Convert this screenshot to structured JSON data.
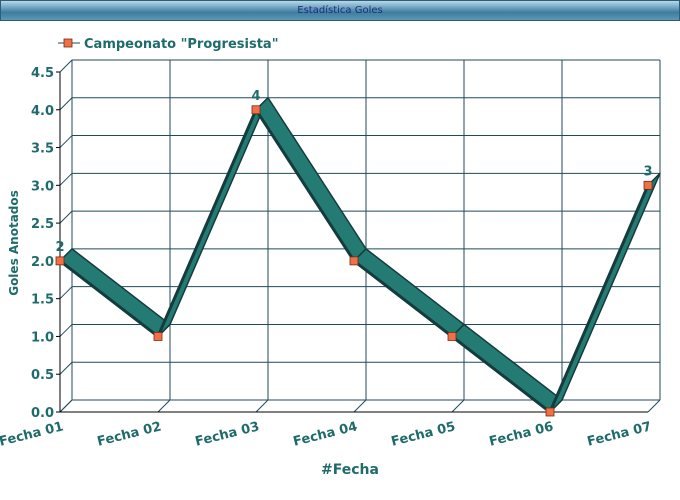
{
  "window": {
    "title": "Estadística Goles"
  },
  "chart_data": {
    "type": "line",
    "title": "",
    "xlabel": "#Fecha",
    "ylabel": "Goles Anotados",
    "categories": [
      "Fecha 01",
      "Fecha 02",
      "Fecha 03",
      "Fecha 04",
      "Fecha 05",
      "Fecha 06",
      "Fecha 07"
    ],
    "y_ticks": [
      "0.0",
      "0.5",
      "1.0",
      "1.5",
      "2.0",
      "2.5",
      "3.0",
      "3.5",
      "4.0",
      "4.5"
    ],
    "ylim": [
      0,
      4.5
    ],
    "grid": true,
    "legend_position": "top-left",
    "series": [
      {
        "name": "Campeonato \"Progresista\"",
        "values": [
          2,
          1,
          4,
          2,
          1,
          0,
          3
        ],
        "point_labels": [
          "2",
          "",
          "4",
          "",
          "",
          "",
          "3"
        ]
      }
    ],
    "colors": {
      "ribbon_top": "#237b74",
      "ribbon_side": "#153c3c",
      "marker": "#f07048",
      "grid": "#1f4a5a",
      "text": "#1f6b6b"
    }
  }
}
